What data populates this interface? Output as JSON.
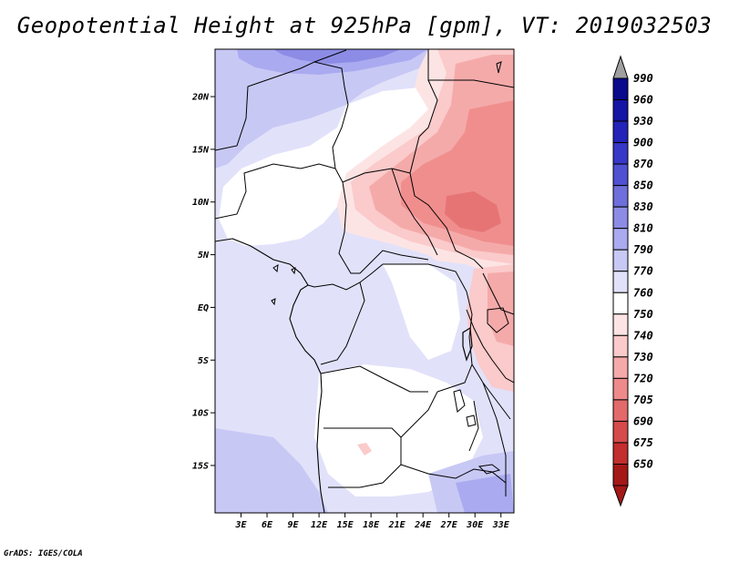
{
  "title": "Geopotential Height at 925hPa [gpm], VT: 2019032503",
  "footer": "GrADS: IGES/COLA",
  "map": {
    "units": "gpm",
    "level": "925hPa",
    "valid_time": "2019032503",
    "lon_range": [
      0,
      34.5
    ],
    "lat_range": [
      -19.5,
      24.5
    ],
    "lat_ticks": [
      {
        "value": 20,
        "label": "20N"
      },
      {
        "value": 15,
        "label": "15N"
      },
      {
        "value": 10,
        "label": "10N"
      },
      {
        "value": 5,
        "label": "5N"
      },
      {
        "value": 0,
        "label": "EQ"
      },
      {
        "value": -5,
        "label": "5S"
      },
      {
        "value": -10,
        "label": "10S"
      },
      {
        "value": -15,
        "label": "15S"
      }
    ],
    "lon_ticks": [
      {
        "value": 3,
        "label": "3E"
      },
      {
        "value": 6,
        "label": "6E"
      },
      {
        "value": 9,
        "label": "9E"
      },
      {
        "value": 12,
        "label": "12E"
      },
      {
        "value": 15,
        "label": "15E"
      },
      {
        "value": 18,
        "label": "18E"
      },
      {
        "value": 21,
        "label": "21E"
      },
      {
        "value": 24,
        "label": "24E"
      },
      {
        "value": 27,
        "label": "27E"
      },
      {
        "value": 30,
        "label": "30E"
      },
      {
        "value": 33,
        "label": "33E"
      }
    ]
  },
  "colorbar": {
    "levels": [
      {
        "label": "990",
        "color": "#0a0a8c"
      },
      {
        "label": "960",
        "color": "#1414a5"
      },
      {
        "label": "930",
        "color": "#2323b9"
      },
      {
        "label": "900",
        "color": "#3737c8"
      },
      {
        "label": "870",
        "color": "#5050d2"
      },
      {
        "label": "850",
        "color": "#6e6edc"
      },
      {
        "label": "830",
        "color": "#8c8ce6"
      },
      {
        "label": "810",
        "color": "#aaaaf0"
      },
      {
        "label": "790",
        "color": "#c8c8f5"
      },
      {
        "label": "770",
        "color": "#e1e1fa"
      },
      {
        "label": "760",
        "color": "#ffffff"
      },
      {
        "label": "750",
        "color": "#fde4e4"
      },
      {
        "label": "740",
        "color": "#fbcaca"
      },
      {
        "label": "730",
        "color": "#f5aaaa"
      },
      {
        "label": "720",
        "color": "#ee8a8a"
      },
      {
        "label": "705",
        "color": "#e36a6a"
      },
      {
        "label": "690",
        "color": "#d54a4a"
      },
      {
        "label": "675",
        "color": "#c32e2e"
      },
      {
        "label": "650",
        "color": "#a51818"
      }
    ],
    "top_arrow_color": "#a0a0a0",
    "bottom_arrow_color": "#a51818"
  }
}
